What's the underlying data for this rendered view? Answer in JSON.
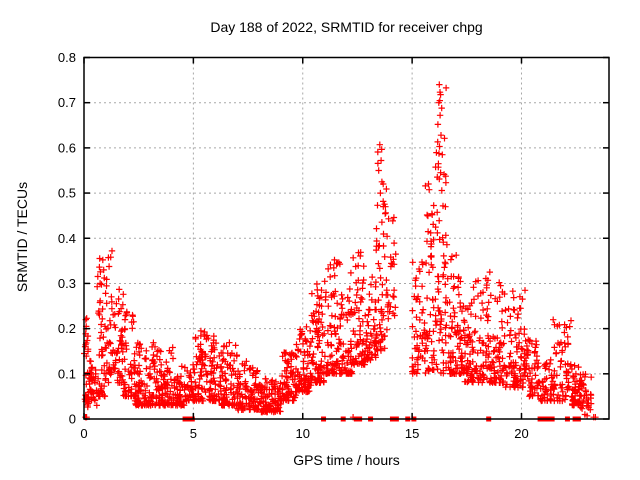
{
  "chart_data": {
    "type": "scatter",
    "title": "Day 188 of 2022, SRMTID for receiver chpg",
    "xlabel": "GPS time / hours",
    "ylabel": "SRMTID / TECUs",
    "xlim": [
      0,
      24
    ],
    "ylim": [
      0,
      0.8
    ],
    "xticks": [
      0,
      5,
      10,
      15,
      20
    ],
    "yticks": [
      0,
      0.1,
      0.2,
      0.3,
      0.4,
      0.5,
      0.6,
      0.7,
      0.8
    ],
    "grid": true,
    "grid_style": "dashed-gray-at-major-ticks",
    "legend": "none",
    "marker": "plus",
    "gap_marker": "filled-square-on-baseline",
    "color": "#ff0000",
    "grid_color": "#a8a8a8",
    "axis_color": "#000000",
    "note": "Dense 24h scatter of red plus markers. point_model bins are [hourStart, hourEnd, valueMin, valueMax, count, lowBiasExponent] estimated from the plot envelope; peak_points are individually visible extreme points; gap_markers_hours are red filled squares drawn on the y=0 axis marking data gaps.",
    "seed": 20220188,
    "point_model": [
      [
        0.0,
        0.2,
        0.02,
        0.225,
        25,
        1.6
      ],
      [
        0.2,
        0.6,
        0.03,
        0.13,
        40,
        1.8
      ],
      [
        0.6,
        1.0,
        0.05,
        0.36,
        48,
        1.9
      ],
      [
        1.0,
        1.45,
        0.08,
        0.375,
        42,
        1.6
      ],
      [
        1.45,
        1.8,
        0.08,
        0.3,
        36,
        1.8
      ],
      [
        1.8,
        2.3,
        0.05,
        0.24,
        48,
        2.0
      ],
      [
        2.3,
        3.2,
        0.03,
        0.17,
        95,
        2.0
      ],
      [
        3.2,
        4.1,
        0.03,
        0.16,
        95,
        2.0
      ],
      [
        4.1,
        4.6,
        0.03,
        0.12,
        48,
        1.8
      ],
      [
        4.6,
        5.1,
        0.04,
        0.13,
        42,
        1.8
      ],
      [
        5.1,
        6.2,
        0.04,
        0.2,
        115,
        2.0
      ],
      [
        6.2,
        7.0,
        0.03,
        0.17,
        85,
        2.0
      ],
      [
        7.0,
        8.0,
        0.02,
        0.13,
        100,
        1.8
      ],
      [
        8.0,
        9.0,
        0.015,
        0.09,
        100,
        1.6
      ],
      [
        9.0,
        9.7,
        0.04,
        0.15,
        75,
        1.8
      ],
      [
        9.7,
        10.4,
        0.06,
        0.22,
        80,
        1.8
      ],
      [
        10.4,
        11.0,
        0.08,
        0.3,
        78,
        1.9
      ],
      [
        11.0,
        11.7,
        0.1,
        0.355,
        78,
        2.0
      ],
      [
        11.7,
        12.3,
        0.1,
        0.33,
        68,
        2.0
      ],
      [
        12.3,
        12.9,
        0.12,
        0.37,
        62,
        1.9
      ],
      [
        12.9,
        13.35,
        0.13,
        0.335,
        48,
        1.9
      ],
      [
        13.35,
        13.85,
        0.15,
        0.6,
        58,
        1.5
      ],
      [
        13.85,
        14.25,
        0.22,
        0.45,
        26,
        1.3
      ],
      [
        15.0,
        15.6,
        0.1,
        0.35,
        55,
        1.8
      ],
      [
        15.6,
        16.0,
        0.1,
        0.52,
        48,
        1.6
      ],
      [
        16.0,
        16.6,
        0.1,
        0.745,
        72,
        1.5
      ],
      [
        16.6,
        17.3,
        0.1,
        0.37,
        80,
        2.0
      ],
      [
        17.3,
        18.2,
        0.08,
        0.31,
        88,
        2.0
      ],
      [
        18.2,
        19.2,
        0.08,
        0.32,
        98,
        1.9
      ],
      [
        19.2,
        20.2,
        0.07,
        0.29,
        98,
        1.9
      ],
      [
        20.2,
        20.8,
        0.05,
        0.18,
        55,
        1.8
      ],
      [
        20.8,
        21.3,
        0.04,
        0.13,
        30,
        1.6
      ],
      [
        21.3,
        22.0,
        0.04,
        0.22,
        55,
        2.0
      ],
      [
        22.0,
        22.3,
        0.05,
        0.22,
        26,
        1.8
      ],
      [
        22.3,
        22.7,
        0.03,
        0.12,
        48,
        1.5
      ],
      [
        22.7,
        23.2,
        0.02,
        0.1,
        32,
        1.6
      ]
    ],
    "peak_points": [
      [
        0.05,
        0.16
      ],
      [
        0.08,
        0.22
      ],
      [
        0.1,
        0.205
      ],
      [
        0.86,
        0.352
      ],
      [
        0.9,
        0.33
      ],
      [
        1.22,
        0.358
      ],
      [
        1.28,
        0.372
      ],
      [
        11.45,
        0.352
      ],
      [
        12.55,
        0.368
      ],
      [
        13.47,
        0.55
      ],
      [
        13.52,
        0.607
      ],
      [
        13.55,
        0.5
      ],
      [
        13.58,
        0.572
      ],
      [
        13.62,
        0.525
      ],
      [
        13.68,
        0.47
      ],
      [
        15.75,
        0.52
      ],
      [
        16.18,
        0.652
      ],
      [
        16.2,
        0.565
      ],
      [
        16.22,
        0.7
      ],
      [
        16.24,
        0.74
      ],
      [
        16.25,
        0.603
      ],
      [
        16.28,
        0.672
      ],
      [
        16.3,
        0.718
      ],
      [
        16.3,
        0.545
      ],
      [
        16.32,
        0.628
      ],
      [
        16.35,
        0.688
      ],
      [
        16.38,
        0.585
      ],
      [
        18.55,
        0.325
      ]
    ],
    "near_zero_points": [
      [
        0.07,
        0.004
      ],
      [
        0.12,
        0.004
      ],
      [
        12.3,
        0.004
      ],
      [
        22.9,
        0.01
      ],
      [
        23.0,
        0.007
      ],
      [
        23.3,
        0.004
      ],
      [
        23.38,
        0.004
      ]
    ],
    "gap_markers_hours": [
      4.62,
      4.78,
      4.95,
      10.95,
      11.85,
      12.45,
      12.6,
      13.1,
      14.1,
      14.28,
      14.8,
      15.08,
      18.5,
      20.85,
      21.0,
      21.2,
      21.4,
      22.1,
      22.45,
      22.6
    ]
  }
}
